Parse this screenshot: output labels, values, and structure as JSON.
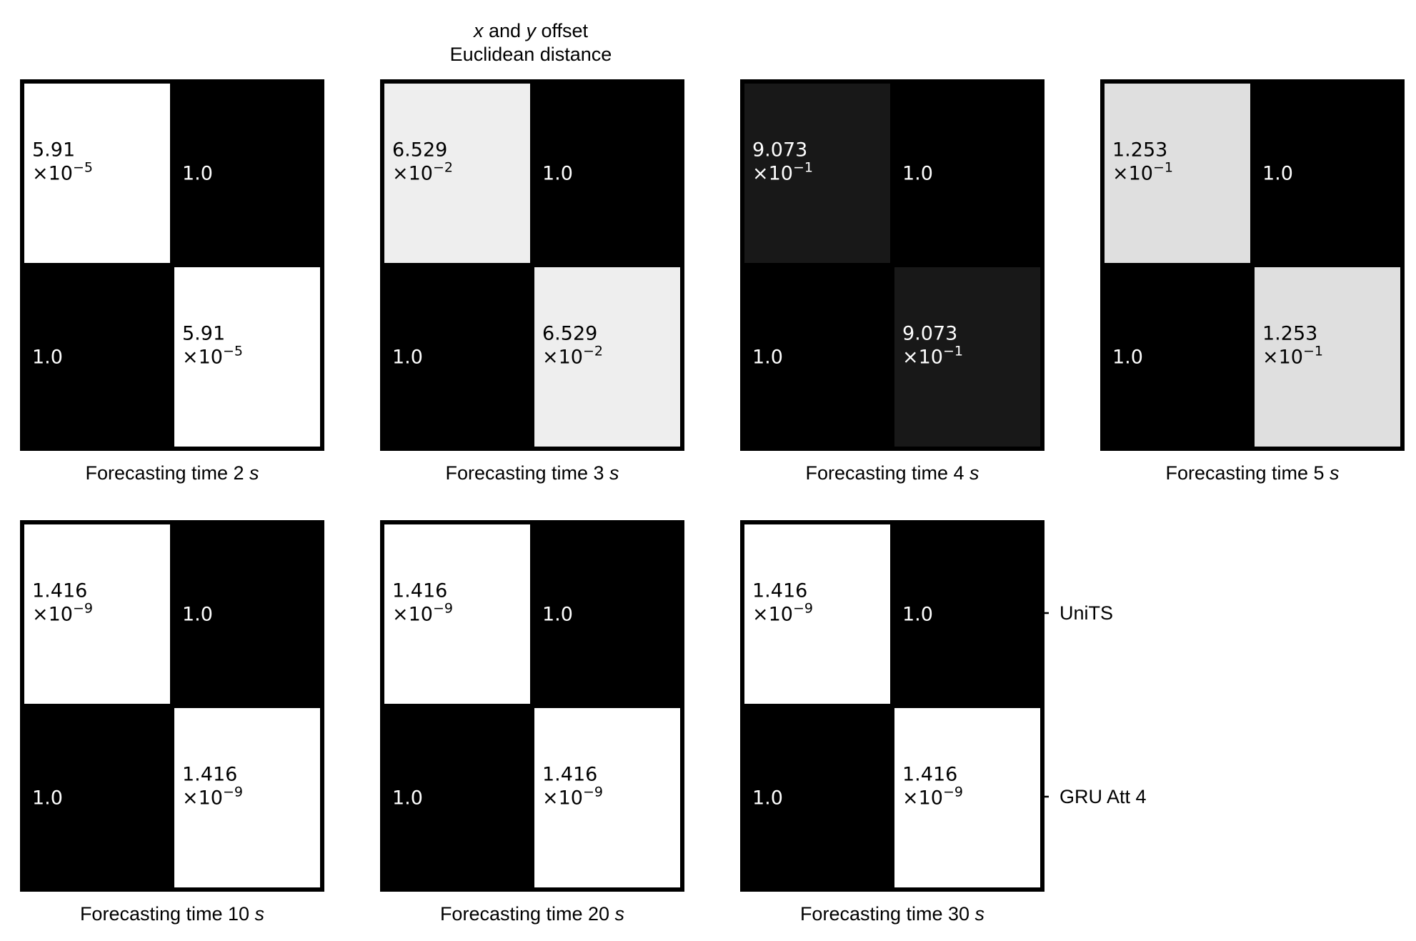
{
  "title": {
    "line1_var1": "x",
    "line1_mid": " and ",
    "line1_var2": "y",
    "line1_tail": " offset",
    "line2": "Euclidean distance"
  },
  "row_labels": [
    "UniTS",
    "GRU Att 4"
  ],
  "colors": {
    "high": "#000000",
    "low": "#ffffff"
  },
  "chart_data": {
    "type": "heatmap",
    "row_labels": [
      "UniTS",
      "GRU Att 4"
    ],
    "col_labels": [
      "UniTS",
      "GRU Att 4"
    ],
    "colormap": "gray_r",
    "panels": [
      {
        "xlabel_prefix": "Forecasting time 2 ",
        "xlabel_unit": "s",
        "off_value": 5.91e-05,
        "off_mantissa": "5.91",
        "off_exponent": "−5",
        "on_value": 1.0,
        "on_label": "1.0",
        "values": [
          [
            5.91e-05,
            1.0
          ],
          [
            1.0,
            5.91e-05
          ]
        ]
      },
      {
        "xlabel_prefix": "Forecasting time 3 ",
        "xlabel_unit": "s",
        "off_value": 0.06529,
        "off_mantissa": "6.529",
        "off_exponent": "−2",
        "on_value": 1.0,
        "on_label": "1.0",
        "values": [
          [
            0.06529,
            1.0
          ],
          [
            1.0,
            0.06529
          ]
        ]
      },
      {
        "xlabel_prefix": "Forecasting time 4 ",
        "xlabel_unit": "s",
        "off_value": 0.9073,
        "off_mantissa": "9.073",
        "off_exponent": "−1",
        "on_value": 1.0,
        "on_label": "1.0",
        "values": [
          [
            0.9073,
            1.0
          ],
          [
            1.0,
            0.9073
          ]
        ]
      },
      {
        "xlabel_prefix": "Forecasting time 5 ",
        "xlabel_unit": "s",
        "off_value": 0.1253,
        "off_mantissa": "1.253",
        "off_exponent": "−1",
        "on_value": 1.0,
        "on_label": "1.0",
        "values": [
          [
            0.1253,
            1.0
          ],
          [
            1.0,
            0.1253
          ]
        ]
      },
      {
        "xlabel_prefix": "Forecasting time 10 ",
        "xlabel_unit": "s",
        "off_value": 1.416e-09,
        "off_mantissa": "1.416",
        "off_exponent": "−9",
        "on_value": 1.0,
        "on_label": "1.0",
        "values": [
          [
            1.416e-09,
            1.0
          ],
          [
            1.0,
            1.416e-09
          ]
        ]
      },
      {
        "xlabel_prefix": "Forecasting time 20 ",
        "xlabel_unit": "s",
        "off_value": 1.416e-09,
        "off_mantissa": "1.416",
        "off_exponent": "−9",
        "on_value": 1.0,
        "on_label": "1.0",
        "values": [
          [
            1.416e-09,
            1.0
          ],
          [
            1.0,
            1.416e-09
          ]
        ]
      },
      {
        "xlabel_prefix": "Forecasting time 30 ",
        "xlabel_unit": "s",
        "off_value": 1.416e-09,
        "off_mantissa": "1.416",
        "off_exponent": "−9",
        "on_value": 1.0,
        "on_label": "1.0",
        "values": [
          [
            1.416e-09,
            1.0
          ],
          [
            1.0,
            1.416e-09
          ]
        ]
      }
    ]
  }
}
